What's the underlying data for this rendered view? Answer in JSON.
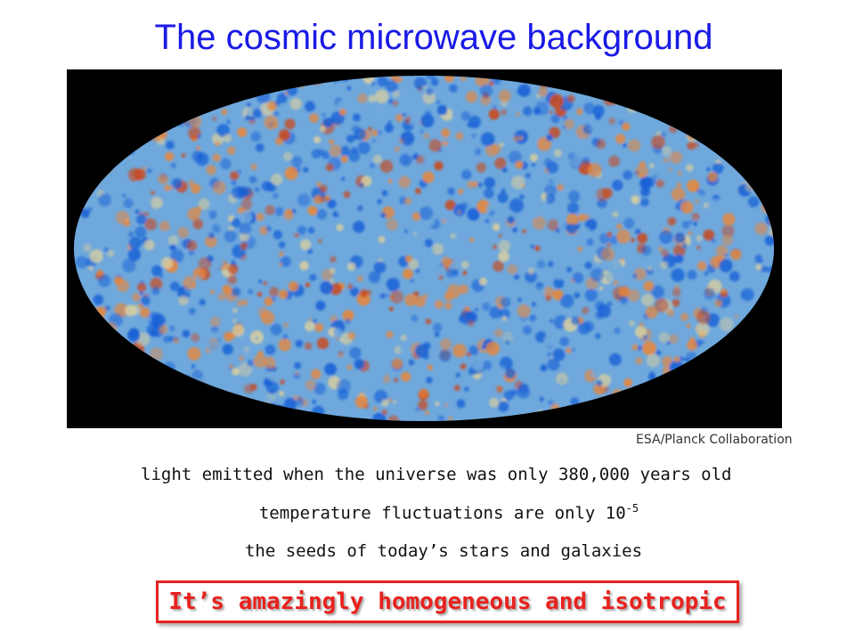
{
  "slide": {
    "title": "The cosmic microwave background",
    "credit": "ESA/Planck Collaboration",
    "line1": "light emitted when the universe was only 380,000 years old",
    "line2_text": "temperature fluctuations are only 10",
    "line2_exponent": "-5",
    "line3": "the seeds of today’s stars and galaxies",
    "callout": "It’s amazingly homogeneous and isotropic"
  },
  "colors": {
    "title": "#1a1ae6",
    "callout": "#e8221e",
    "map_background": "#000000",
    "map_base": "#6fa8dc",
    "cold": "#1560d6",
    "warm": "#e8863a",
    "hot": "#c94a1f",
    "neutral": "#d9cfa0"
  }
}
